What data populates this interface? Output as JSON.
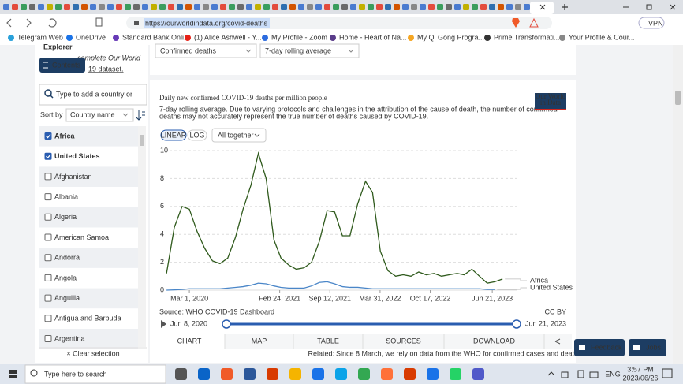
{
  "browser": {
    "url": "https://ourworldindata.org/covid-deaths",
    "vpn": "VPN",
    "bookmarks": [
      "Telegram Web",
      "OneDrive",
      "Standard Bank Onli...",
      "(1) Alice Ashwell - Y...",
      "My Profile - Zoom",
      "Home - Heart of Na...",
      "My Qi Gong Progra...",
      "Prime Transformati...",
      "Your Profile & Cour..."
    ]
  },
  "sidebar": {
    "title": "Explorer",
    "intro": "complete Our World",
    "intro_end": "19 dataset.",
    "contents_button": "Contents",
    "search_placeholder": "Type to add a country or",
    "sort_label": "Sort by",
    "sort_value": "Country name",
    "countries": [
      {
        "name": "Africa",
        "checked": true
      },
      {
        "name": "United States",
        "checked": true
      },
      {
        "name": "Afghanistan",
        "checked": false
      },
      {
        "name": "Albania",
        "checked": false
      },
      {
        "name": "Algeria",
        "checked": false
      },
      {
        "name": "American Samoa",
        "checked": false
      },
      {
        "name": "Andorra",
        "checked": false
      },
      {
        "name": "Angola",
        "checked": false
      },
      {
        "name": "Anguilla",
        "checked": false
      },
      {
        "name": "Antigua and Barbuda",
        "checked": false
      },
      {
        "name": "Argentina",
        "checked": false
      }
    ],
    "clear": "× Clear selection"
  },
  "controls": {
    "metric": "Confirmed deaths",
    "interval": "7-day rolling average"
  },
  "chart_data": {
    "type": "line",
    "title": "Daily new confirmed COVID-19 deaths per million people",
    "subtitle": "7-day rolling average. Due to varying protocols and challenges in the attribution of the cause of death, the number of confirmed",
    "subtitle_2": "deaths may not accurately represent the true number of deaths caused by COVID-19.",
    "logo": [
      "Our World",
      "in Data"
    ],
    "scale_options": [
      "LINEAR",
      "LOG"
    ],
    "log_scale": false,
    "grouping": "All together",
    "grid": true,
    "x": [
      "2019-12-01",
      "2020-01-01",
      "2020-02-01",
      "2020-03-01",
      "2020-04-01",
      "2020-05-01",
      "2020-06-01",
      "2020-07-01",
      "2020-08-01",
      "2020-09-01",
      "2020-10-01",
      "2020-11-01",
      "2020-12-01",
      "2021-01-01",
      "2021-02-01",
      "2021-03-01",
      "2021-04-01",
      "2021-05-01",
      "2021-06-01",
      "2021-07-01",
      "2021-08-01",
      "2021-09-01",
      "2021-10-01",
      "2021-11-01",
      "2021-12-01",
      "2022-01-01",
      "2022-02-01",
      "2022-03-01",
      "2022-04-01",
      "2022-05-01",
      "2022-06-01",
      "2022-07-01",
      "2022-08-01",
      "2022-09-01",
      "2022-10-01",
      "2022-11-01",
      "2022-12-01",
      "2023-01-01",
      "2023-02-01",
      "2023-03-01",
      "2023-04-01",
      "2023-05-01",
      "2023-06-01",
      "2023-07-01",
      "2023-08-01"
    ],
    "xlim": [
      "2019-11-18",
      "2023-09-26"
    ],
    "xticks": [
      {
        "value": "2020-03-01",
        "label": "Mar 1, 2020"
      },
      {
        "value": "2021-02-24",
        "label": "Feb 24, 2021"
      },
      {
        "value": "2021-09-12",
        "label": "Sep 12, 2021"
      },
      {
        "value": "2022-03-31",
        "label": "Mar 31, 2022"
      },
      {
        "value": "2022-10-17",
        "label": "Oct 17, 2022"
      },
      {
        "value": "2023-06-21",
        "label": "Jun 21, 2023"
      }
    ],
    "ylim": [
      0,
      10
    ],
    "yticks": [
      0,
      2,
      4,
      6,
      8,
      10
    ],
    "series": [
      {
        "name": "Africa",
        "color": "#2f5a1c",
        "values": [
          1.2,
          4.5,
          6,
          5.8,
          4.2,
          3,
          2.1,
          1.9,
          2.3,
          3.8,
          5.8,
          7.5,
          9.8,
          8,
          3.6,
          2.3,
          1.8,
          1.5,
          1.6,
          2,
          3.5,
          5.7,
          5.6,
          3.9,
          3.9,
          6.2,
          7.8,
          7,
          2.8,
          1.4,
          1,
          1.1,
          1,
          1.3,
          1.1,
          1.2,
          1,
          1.1,
          1.2,
          1.1,
          1.5,
          1,
          0.5,
          0.6,
          0.8
        ]
      },
      {
        "name": "United States",
        "color": "#4a86c8",
        "values": [
          0,
          0.02,
          0.05,
          0.1,
          0.1,
          0.1,
          0.1,
          0.1,
          0.15,
          0.2,
          0.25,
          0.35,
          0.5,
          0.45,
          0.3,
          0.2,
          0.15,
          0.15,
          0.15,
          0.3,
          0.55,
          0.6,
          0.45,
          0.25,
          0.2,
          0.2,
          0.15,
          0.1,
          0.1,
          0.1,
          0.1,
          0.1,
          0.1,
          0.1,
          0.1,
          0.1,
          0.1,
          0.1,
          0.1,
          0.1,
          0.1,
          0.1,
          0.05,
          0.05,
          null
        ]
      }
    ],
    "source": "Source: WHO COVID-19 Dashboard",
    "license": "CC BY",
    "timeline_start": "Jun 8, 2020",
    "timeline_end": "Jun 21, 2023",
    "tabs": [
      "CHART",
      "MAP",
      "TABLE",
      "SOURCES",
      "DOWNLOAD"
    ],
    "related_label": "Related:",
    "related_link": "Since 8 March, we rely on data from the WHO for confirmed cases and deaths"
  },
  "feedback": "Feedback",
  "jobs": "Jobs",
  "taskbar": {
    "search": "Type here to search",
    "lang": "ENG",
    "time": "3:57 PM",
    "date": "2023/06/26"
  }
}
